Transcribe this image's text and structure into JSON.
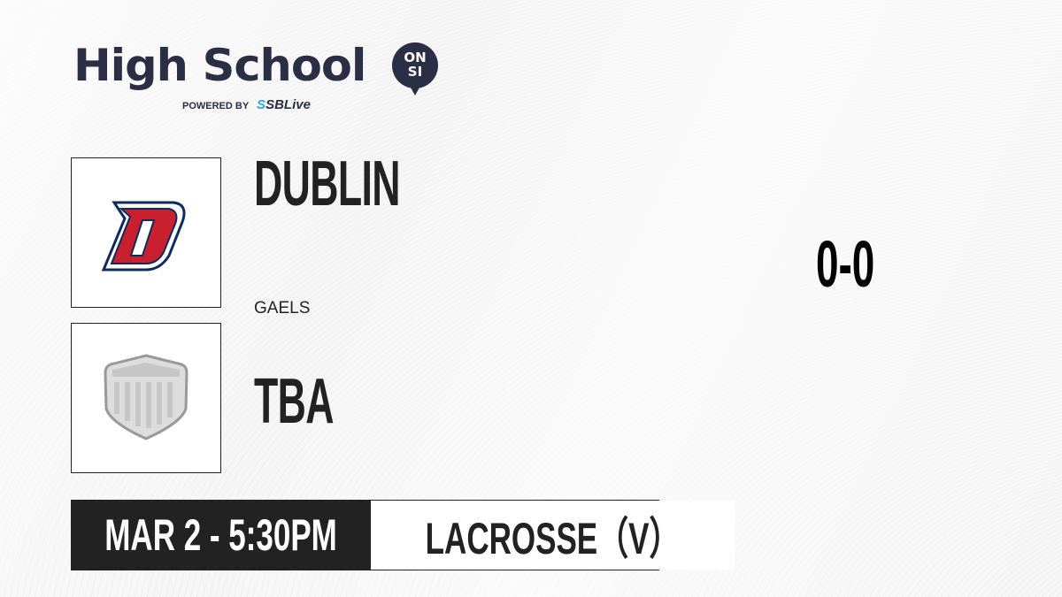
{
  "brand": {
    "title": "High School",
    "badge_top": "ON",
    "badge_bottom": "SI",
    "powered_by": "POWERED BY",
    "partner_prefix": "S",
    "partner": "SBLive"
  },
  "teams": [
    {
      "name": "DUBLIN",
      "mascot": "GAELS",
      "logo": "dublin-d-logo",
      "colors": {
        "primary": "#c8202f",
        "outline": "#0f2a5c"
      }
    },
    {
      "name": "TBA",
      "mascot": "",
      "logo": "placeholder-shield-logo"
    }
  ],
  "score": "0-0",
  "game": {
    "datetime": "MAR 2 - 5:30PM",
    "sport": "LACROSSE（V）"
  }
}
